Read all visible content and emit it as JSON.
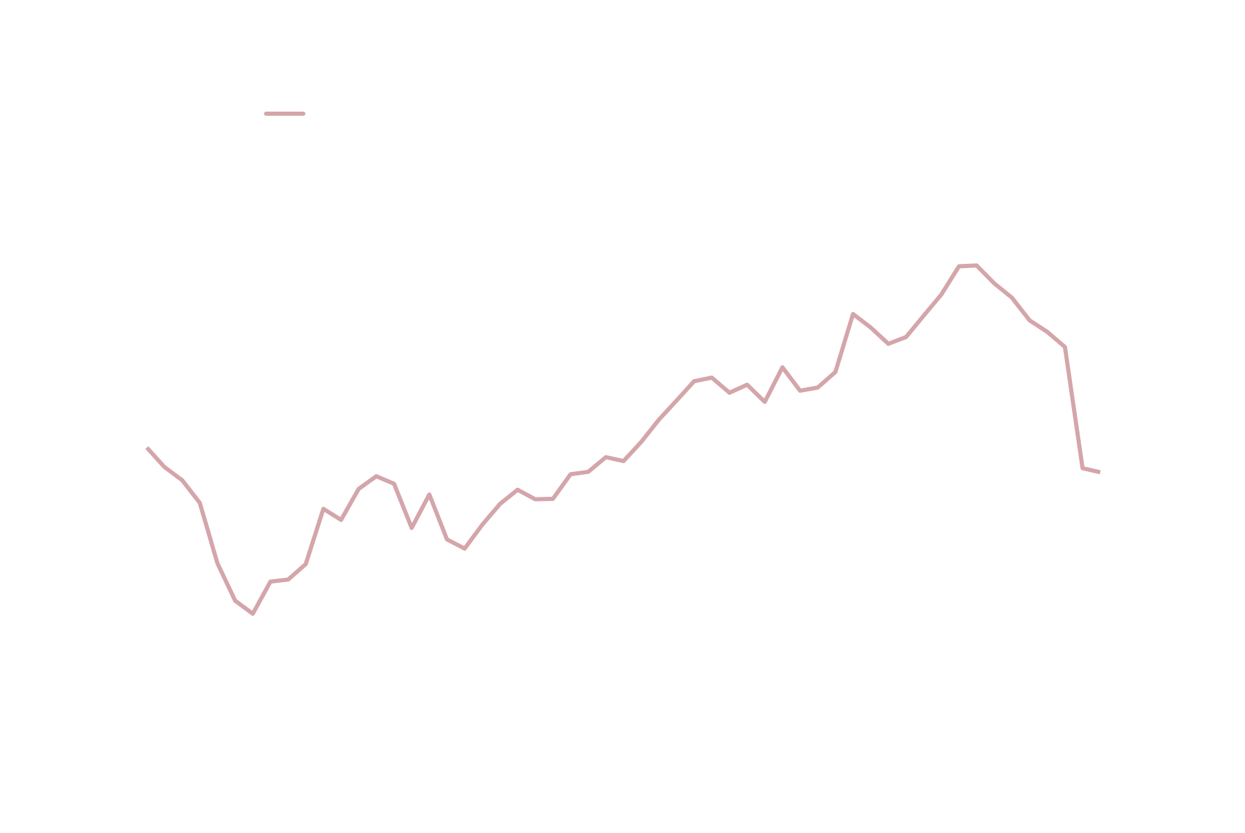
{
  "chart_data": {
    "type": "line",
    "title": "",
    "xlabel": "",
    "ylabel": "",
    "grid": false,
    "legend_position": "top-left",
    "x": [
      0,
      1,
      2,
      3,
      4,
      5,
      6,
      7,
      8,
      9,
      10,
      11,
      12,
      13,
      14,
      15,
      16,
      17,
      18,
      19,
      20,
      21,
      22,
      23,
      24,
      25,
      26,
      27,
      28,
      29,
      30,
      31,
      32,
      33,
      34,
      35,
      36,
      37,
      38,
      39,
      40,
      41,
      42,
      43,
      44,
      45,
      46,
      47,
      48,
      49,
      50,
      51,
      52,
      53,
      54
    ],
    "xlim": [
      0,
      54
    ],
    "ylim": [
      0,
      100
    ],
    "series": [
      {
        "name": "",
        "color": "#d4a5aa",
        "values": [
          50.5,
          45.6,
          42.3,
          36.6,
          21.4,
          12.0,
          8.7,
          16.8,
          17.3,
          21.2,
          35.1,
          32.3,
          40.1,
          43.3,
          41.4,
          30.3,
          38.7,
          27.4,
          25.1,
          31.1,
          36.3,
          39.9,
          37.5,
          37.6,
          43.8,
          44.4,
          48.1,
          47.1,
          51.9,
          57.5,
          62.3,
          67.2,
          68.1,
          64.3,
          66.3,
          62.0,
          70.7,
          64.8,
          65.6,
          69.5,
          84.1,
          80.7,
          76.6,
          78.3,
          83.7,
          89.0,
          96.1,
          96.3,
          91.8,
          88.2,
          82.5,
          79.6,
          75.8,
          45.3,
          44.3
        ]
      }
    ]
  }
}
